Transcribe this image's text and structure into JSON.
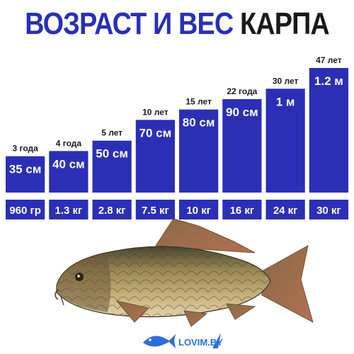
{
  "title": {
    "part1": "ВОЗРАСТ И ВЕС",
    "part2": "КАРПА"
  },
  "colors": {
    "bar": "#2b2fb5",
    "title_blue": "#2b2fb5",
    "title_dark": "#1a1a1a",
    "label": "#1a1a1a"
  },
  "logo": {
    "text": "LOVIM.BY"
  },
  "chart_data": {
    "type": "bar",
    "categories": [
      "3 года",
      "4 года",
      "5 лет",
      "10 лет",
      "15 лет",
      "22 года",
      "30 лет",
      "47 лет"
    ],
    "length_labels": [
      "35 см",
      "40 см",
      "50 см",
      "70 см",
      "80 см",
      "90 см",
      "1 м",
      "1.2 м"
    ],
    "length_cm": [
      35,
      40,
      50,
      70,
      80,
      90,
      100,
      120
    ],
    "weight_labels": [
      "960 гр",
      "1.3 кг",
      "2.8 кг",
      "7.5 кг",
      "10 кг",
      "16 кг",
      "24 кг",
      "30 кг"
    ],
    "weight_kg": [
      0.96,
      1.3,
      2.8,
      7.5,
      10,
      16,
      24,
      30
    ],
    "ylim": [
      0,
      120
    ]
  }
}
